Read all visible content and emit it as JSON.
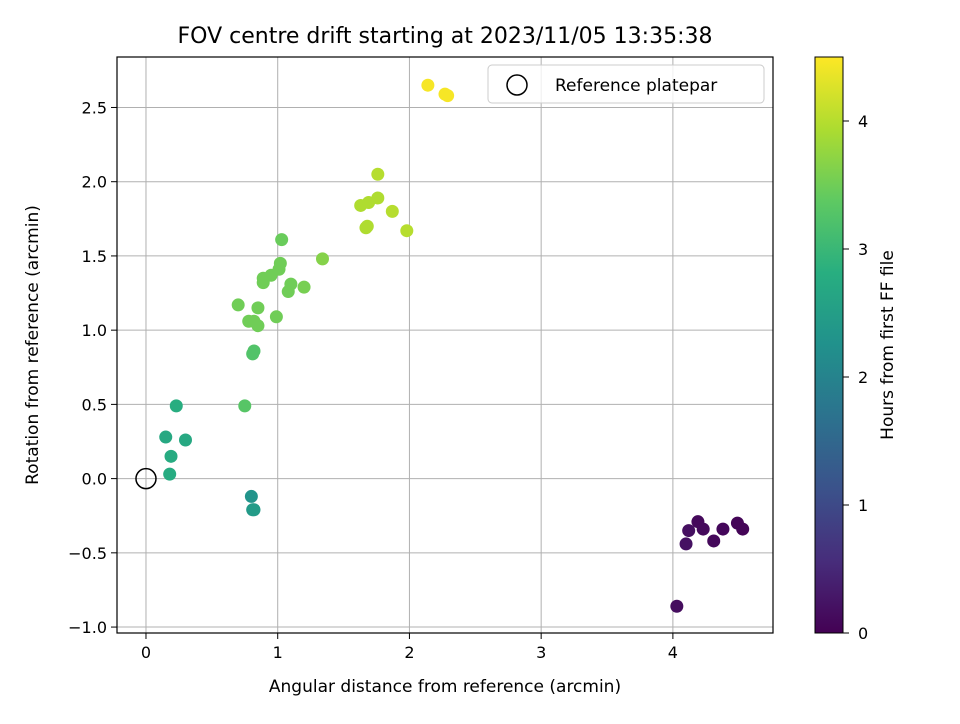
{
  "chart_data": {
    "type": "scatter",
    "title": "FOV centre drift starting at 2023/11/05 13:35:38",
    "xlabel": "Angular distance from reference (arcmin)",
    "ylabel": "Rotation from reference (arcmin)",
    "xlim": [
      -0.22,
      4.76
    ],
    "ylim": [
      -1.04,
      2.84
    ],
    "xticks": [
      0,
      1,
      2,
      3,
      4
    ],
    "yticks": [
      -1.0,
      -0.5,
      0.0,
      0.5,
      1.0,
      1.5,
      2.0,
      2.5
    ],
    "xtick_labels": [
      "0",
      "1",
      "2",
      "3",
      "4"
    ],
    "ytick_labels": [
      "−1.0",
      "−0.5",
      "0.0",
      "0.5",
      "1.0",
      "1.5",
      "2.0",
      "2.5"
    ],
    "grid": true,
    "legend": {
      "position": "top-right",
      "entry": "Reference platepar"
    },
    "reference_point": {
      "x": 0,
      "y": 0
    },
    "colorbar": {
      "label": "Hours from first FF file",
      "range": [
        0,
        4.5
      ],
      "ticks": [
        0,
        1,
        2,
        3,
        4
      ],
      "tick_labels": [
        "0",
        "1",
        "2",
        "3",
        "4"
      ],
      "colormap": "viridis"
    },
    "points": [
      {
        "x": 4.03,
        "y": -0.86,
        "h": 0.15
      },
      {
        "x": 4.1,
        "y": -0.44,
        "h": 0.2
      },
      {
        "x": 4.12,
        "y": -0.35,
        "h": 0.18
      },
      {
        "x": 4.19,
        "y": -0.29,
        "h": 0.1
      },
      {
        "x": 4.23,
        "y": -0.34,
        "h": 0.12
      },
      {
        "x": 4.31,
        "y": -0.42,
        "h": 0.1
      },
      {
        "x": 4.38,
        "y": -0.34,
        "h": 0.08
      },
      {
        "x": 4.49,
        "y": -0.3,
        "h": 0.05
      },
      {
        "x": 4.53,
        "y": -0.34,
        "h": 0.05
      },
      {
        "x": 0.8,
        "y": -0.12,
        "h": 2.3
      },
      {
        "x": 0.81,
        "y": -0.21,
        "h": 2.4
      },
      {
        "x": 0.82,
        "y": -0.21,
        "h": 2.45
      },
      {
        "x": 0.18,
        "y": 0.03,
        "h": 2.75
      },
      {
        "x": 0.19,
        "y": 0.15,
        "h": 2.75
      },
      {
        "x": 0.15,
        "y": 0.28,
        "h": 2.7
      },
      {
        "x": 0.3,
        "y": 0.26,
        "h": 2.7
      },
      {
        "x": 0.23,
        "y": 0.49,
        "h": 2.8
      },
      {
        "x": 0.75,
        "y": 0.49,
        "h": 3.3
      },
      {
        "x": 0.81,
        "y": 0.84,
        "h": 3.25
      },
      {
        "x": 0.82,
        "y": 0.86,
        "h": 3.25
      },
      {
        "x": 0.7,
        "y": 1.17,
        "h": 3.5
      },
      {
        "x": 0.78,
        "y": 1.06,
        "h": 3.5
      },
      {
        "x": 0.82,
        "y": 1.06,
        "h": 3.5
      },
      {
        "x": 0.85,
        "y": 1.03,
        "h": 3.5
      },
      {
        "x": 0.85,
        "y": 1.15,
        "h": 3.5
      },
      {
        "x": 0.89,
        "y": 1.32,
        "h": 3.5
      },
      {
        "x": 0.89,
        "y": 1.35,
        "h": 3.5
      },
      {
        "x": 0.95,
        "y": 1.37,
        "h": 3.5
      },
      {
        "x": 0.99,
        "y": 1.09,
        "h": 3.5
      },
      {
        "x": 1.01,
        "y": 1.41,
        "h": 3.5
      },
      {
        "x": 1.02,
        "y": 1.45,
        "h": 3.5
      },
      {
        "x": 1.03,
        "y": 1.61,
        "h": 3.45
      },
      {
        "x": 1.08,
        "y": 1.26,
        "h": 3.5
      },
      {
        "x": 1.1,
        "y": 1.31,
        "h": 3.5
      },
      {
        "x": 1.2,
        "y": 1.29,
        "h": 3.55
      },
      {
        "x": 1.34,
        "y": 1.48,
        "h": 3.65
      },
      {
        "x": 1.63,
        "y": 1.84,
        "h": 3.95
      },
      {
        "x": 1.67,
        "y": 1.69,
        "h": 3.95
      },
      {
        "x": 1.68,
        "y": 1.7,
        "h": 3.95
      },
      {
        "x": 1.69,
        "y": 1.86,
        "h": 3.95
      },
      {
        "x": 1.76,
        "y": 1.89,
        "h": 3.95
      },
      {
        "x": 1.76,
        "y": 2.05,
        "h": 4.0
      },
      {
        "x": 1.87,
        "y": 1.8,
        "h": 4.0
      },
      {
        "x": 1.98,
        "y": 1.67,
        "h": 4.0
      },
      {
        "x": 2.14,
        "y": 2.65,
        "h": 4.45
      },
      {
        "x": 2.27,
        "y": 2.59,
        "h": 4.45
      },
      {
        "x": 2.29,
        "y": 2.58,
        "h": 4.45
      }
    ]
  }
}
